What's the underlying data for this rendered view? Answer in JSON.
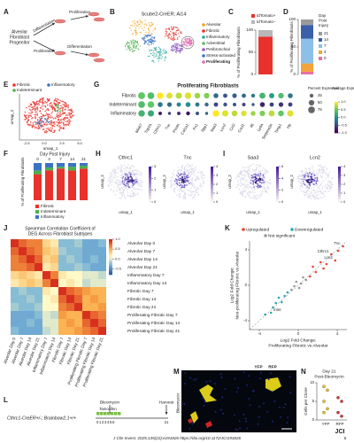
{
  "figure": {
    "A": {
      "letter": "A",
      "progenitor": [
        "Alveolar",
        "Fibroblast",
        "Progenitor"
      ],
      "arrows": [
        "Differentiation",
        "Proliferation",
        "Proliferation",
        "Differentiation"
      ]
    },
    "B": {
      "letter": "B",
      "title": "Scube2-CreER; Ai14",
      "legend": [
        {
          "name": "Alveolar",
          "color": "#f5a31a"
        },
        {
          "name": "Fibrotic",
          "color": "#e8322b"
        },
        {
          "name": "Inflammatory",
          "color": "#2aa7a0"
        },
        {
          "name": "Adventitial",
          "color": "#5cb85c"
        },
        {
          "name": "Peribronchial",
          "color": "#8e5cc4"
        },
        {
          "name": "Stress-activated",
          "color": "#3b73c4"
        },
        {
          "name": "Proliferating",
          "color": "#e46bb0"
        }
      ]
    },
    "C": {
      "letter": "C",
      "ylabel": "% of Proliferating Fibroblasts",
      "ylim": [
        0,
        100
      ],
      "yticks": [
        0,
        50,
        100
      ],
      "series": [
        {
          "name": "tdTomato+",
          "color": "#e8322b",
          "value": 85
        },
        {
          "name": "tdTomato−",
          "color": "#b8b8b8",
          "value": 15
        }
      ]
    },
    "D": {
      "letter": "D",
      "ylabel": "% of Proliferating Fibroblasts",
      "legend_title": [
        "Day",
        "Post",
        "Injury"
      ],
      "ylim": [
        0,
        100
      ],
      "yticks": [
        0,
        50,
        100
      ],
      "series": [
        {
          "name": "21",
          "color": "#9a9a9a",
          "value": 10
        },
        {
          "name": "14",
          "color": "#3b5fa8",
          "value": 25
        },
        {
          "name": "7",
          "color": "#8cc0e8",
          "value": 45
        },
        {
          "name": "4",
          "color": "#f2a33a",
          "value": 15
        },
        {
          "name": "0",
          "color": "#e96fa5",
          "value": 5
        }
      ]
    },
    "E": {
      "letter": "E",
      "legend": [
        {
          "name": "Fibrotic",
          "color": "#e8322b"
        },
        {
          "name": "Inflammatory",
          "color": "#3b73c4"
        },
        {
          "name": "Indeterminant",
          "color": "#4caf50"
        }
      ],
      "xlabel": "umap_1",
      "ylabel": "umap_2",
      "xtick_labels": [
        "-2.5",
        "0.0",
        "2.5",
        "5.0"
      ]
    },
    "G": {
      "letter": "G",
      "title": "Proliferating Fibroblasts",
      "rows": [
        "Fibrotic",
        "Indeterminant",
        "Inflammatory"
      ],
      "genes": [
        "Mki67",
        "Top2a",
        "Cthrc1",
        "Tnc",
        "Postn",
        "Col1a1",
        "Fn1",
        "Spp1",
        "Saa3",
        "Lcn2",
        "Ccl2",
        "Cxcl1",
        "Il6",
        "Ly6a",
        "Serpina3n",
        "Timp1",
        "Hp"
      ],
      "pct": [
        [
          80,
          75,
          70,
          60,
          65,
          70,
          55,
          50,
          40,
          30,
          35,
          30,
          25,
          60,
          45,
          50,
          40
        ],
        [
          75,
          70,
          40,
          35,
          30,
          40,
          30,
          25,
          30,
          25,
          20,
          20,
          15,
          40,
          30,
          35,
          30
        ],
        [
          70,
          65,
          20,
          15,
          20,
          25,
          20,
          15,
          70,
          65,
          55,
          50,
          40,
          50,
          60,
          55,
          65
        ]
      ],
      "avg": [
        [
          0.5,
          0.4,
          1.0,
          0.9,
          0.8,
          0.9,
          0.7,
          0.6,
          -0.3,
          -0.5,
          -0.4,
          -0.3,
          -0.2,
          0.3,
          0.1,
          0.4,
          -0.2
        ],
        [
          0.4,
          0.5,
          -0.2,
          -0.3,
          -0.1,
          0.0,
          -0.2,
          -0.3,
          -0.6,
          -0.5,
          -0.5,
          -0.6,
          -0.4,
          -0.8,
          -0.6,
          -0.7,
          -0.6
        ],
        [
          0.3,
          0.2,
          -0.8,
          -0.6,
          -0.7,
          -0.9,
          -0.5,
          -0.4,
          1.0,
          0.9,
          0.8,
          0.9,
          0.7,
          0.6,
          0.8,
          0.5,
          0.9
        ]
      ],
      "pct_title": "Percent Expressed",
      "pct_ticks": [
        25,
        50,
        75
      ],
      "avg_title": "Average Expression",
      "avg_lim": [
        -1,
        1
      ],
      "avg_ticks": [
        {
          "value": 1,
          "label": "1.0"
        },
        {
          "value": 0.5,
          "label": "0.5"
        },
        {
          "value": 0,
          "label": "0.0"
        },
        {
          "value": -0.5,
          "label": "-0.5"
        },
        {
          "value": -1,
          "label": "-1.0"
        }
      ]
    },
    "F": {
      "letter": "F",
      "legend_title": "Day Post Injury",
      "categories": [
        "0",
        "4",
        "7",
        "14",
        "21"
      ],
      "ylabel": "% of Proliferating Fibroblasts",
      "ylim": [
        0,
        100
      ],
      "series": [
        {
          "name": "Fibrotic",
          "color": "#e8322b",
          "values": [
            70,
            80,
            85,
            80,
            85
          ]
        },
        {
          "name": "Indeterminant",
          "color": "#4caf50",
          "values": [
            10,
            8,
            5,
            10,
            8
          ]
        },
        {
          "name": "Inflammatory",
          "color": "#3b73c4",
          "values": [
            20,
            12,
            10,
            10,
            7
          ]
        }
      ]
    },
    "H": {
      "letter": "H",
      "xlabel": "umap_1",
      "ylabel": "umap_2",
      "features": [
        {
          "gene": "Cthrc1",
          "ticks": [
            0,
            1,
            2,
            3
          ]
        },
        {
          "gene": "Tnc",
          "ticks": [
            0,
            1,
            2,
            3,
            4
          ]
        }
      ]
    },
    "I": {
      "letter": "I",
      "xlabel": "umap_1",
      "ylabel": "umap_2",
      "features": [
        {
          "gene": "Saa3",
          "ticks": [
            0,
            2,
            4,
            6
          ]
        },
        {
          "gene": "Lcn2",
          "ticks": [
            0,
            1,
            2,
            3,
            4
          ]
        }
      ]
    },
    "J": {
      "letter": "J",
      "title": [
        "Spearman Correlation Coefficient of",
        "DEG Across Fibroblast Subtypes"
      ],
      "labels": [
        "Alveolar Day 0",
        "Alveolar Day 7",
        "Alveolar Day 14",
        "Alveolar Day 21",
        "Inflammatory Day 7",
        "Inflammatory Day 14",
        "Fibrotic Day 7",
        "Fibrotic Day 14",
        "Fibrotic Day 21",
        "Proliferating Fibrotic Day 7",
        "Proliferating Fibrotic Day 14",
        "Proliferating Fibrotic Day 21"
      ],
      "matrix": [
        [
          1,
          0.8,
          0.7,
          0.7,
          0.3,
          0.2,
          -0.3,
          -0.3,
          -0.2,
          -0.4,
          -0.4,
          -0.3
        ],
        [
          0.8,
          1,
          0.8,
          0.7,
          0.4,
          0.3,
          -0.2,
          -0.3,
          -0.3,
          -0.4,
          -0.4,
          -0.4
        ],
        [
          0.7,
          0.8,
          1,
          0.8,
          0.3,
          0.4,
          -0.3,
          -0.2,
          -0.3,
          -0.4,
          -0.3,
          -0.4
        ],
        [
          0.7,
          0.7,
          0.8,
          1,
          0.2,
          0.3,
          -0.3,
          -0.3,
          -0.2,
          -0.3,
          -0.4,
          -0.4
        ],
        [
          0.3,
          0.4,
          0.3,
          0.2,
          1,
          0.7,
          0.2,
          0.1,
          0.1,
          0.0,
          0.0,
          -0.1
        ],
        [
          0.2,
          0.3,
          0.4,
          0.3,
          0.7,
          1,
          0.1,
          0.2,
          0.1,
          -0.1,
          0.0,
          0.0
        ],
        [
          -0.3,
          -0.2,
          -0.3,
          -0.3,
          0.2,
          0.1,
          1,
          0.8,
          0.7,
          0.6,
          0.5,
          0.5
        ],
        [
          -0.3,
          -0.3,
          -0.2,
          -0.3,
          0.1,
          0.2,
          0.8,
          1,
          0.8,
          0.5,
          0.6,
          0.5
        ],
        [
          -0.2,
          -0.3,
          -0.3,
          -0.2,
          0.1,
          0.1,
          0.7,
          0.8,
          1,
          0.5,
          0.5,
          0.6
        ],
        [
          -0.4,
          -0.4,
          -0.4,
          -0.3,
          0.0,
          -0.1,
          0.6,
          0.5,
          0.5,
          1,
          0.8,
          0.7
        ],
        [
          -0.4,
          -0.4,
          -0.3,
          -0.4,
          0.0,
          0.0,
          0.5,
          0.6,
          0.5,
          0.8,
          1,
          0.8
        ],
        [
          -0.3,
          -0.4,
          -0.4,
          -0.4,
          -0.1,
          0.0,
          0.5,
          0.5,
          0.6,
          0.7,
          0.8,
          1
        ]
      ],
      "clim": [
        -0.8,
        1
      ],
      "cticks": [
        {
          "value": 1,
          "label": "1.0"
        },
        {
          "value": 0.5,
          "label": "0.5"
        },
        {
          "value": 0,
          "label": "0.0"
        },
        {
          "value": -0.5,
          "label": "-0.5"
        }
      ]
    },
    "K": {
      "letter": "K",
      "xlabel": [
        "Log2 Fold Change:",
        "Proliferating Fibrotic vs Alveolar"
      ],
      "ylabel": [
        "Log2 Fold Change:",
        "Non-proliferating Fibrotic vs Alveolar"
      ],
      "xlim": [
        -5,
        5
      ],
      "ylim": [
        -5,
        5
      ],
      "xticks": [
        -4,
        0,
        4
      ],
      "yticks": [
        -4,
        0,
        4
      ],
      "series": [
        {
          "name": "Upregulated",
          "color": "#e8452b",
          "x": [
            1.2,
            1.8,
            2.3,
            2.9,
            3.4,
            4.1,
            1.5,
            2.6,
            3.8,
            4.6
          ],
          "y": [
            1.0,
            1.5,
            2.6,
            2.4,
            3.5,
            3.9,
            2.1,
            1.9,
            2.8,
            4.4
          ]
        },
        {
          "name": "Downregulated",
          "color": "#2aa7b5",
          "x": [
            -1.1,
            -1.7,
            -2.3,
            -2.8,
            -3.4,
            -1.4,
            -2.0,
            -2.6
          ],
          "y": [
            -0.8,
            -1.9,
            -2.0,
            -3.1,
            -3.3,
            -1.2,
            -1.4,
            -2.5
          ]
        },
        {
          "name": "Not significant",
          "color": "#9a9a9a",
          "x": [
            0.3,
            -0.4,
            0.8,
            -0.7,
            0.1,
            0.5,
            -0.2
          ],
          "y": [
            0.2,
            -0.1,
            0.6,
            -0.5,
            -0.3,
            0.9,
            0.4
          ]
        }
      ],
      "annotations": [
        {
          "text": "Cthrc1",
          "x": 3.4,
          "y": 3.5
        },
        {
          "text": "Tnc",
          "x": 4.6,
          "y": 4.4
        },
        {
          "text": "Lcn2",
          "x": 3.8,
          "y": 2.8
        },
        {
          "text": "Inmt",
          "x": -2.8,
          "y": -3.1
        }
      ]
    },
    "L": {
      "letter": "L",
      "genotype": "Cthrc1-CreER+/-; Brainbow2.1+/+",
      "bleomycin": "Bleomycin",
      "tamoxifen": "Tamoxifen",
      "harvest": "Harvest",
      "days": "0123456",
      "end_day": "21"
    },
    "M": {
      "letter": "M",
      "channels": [
        "YFP",
        "RFP"
      ],
      "side": "Bleomycin"
    },
    "N": {
      "letter": "N",
      "title": [
        "Day 21",
        "Post-Bleomycin"
      ],
      "ylabel": "Cells per Clone",
      "categories": [
        "YFP",
        "RFP"
      ],
      "colors": [
        "#f0c419",
        "#d9332b"
      ],
      "values": [
        [
          9,
          8,
          5,
          3,
          2
        ],
        [
          6,
          5,
          2,
          1
        ]
      ],
      "ylim": [
        0,
        10
      ],
      "yticks": [
        0,
        5,
        10
      ]
    },
    "footer": {
      "citation": "J Clin Invest. 2025;135(22):e191826 https://doi.org/10.1172/JCI191826",
      "page": "5",
      "logo": "JCI"
    }
  }
}
